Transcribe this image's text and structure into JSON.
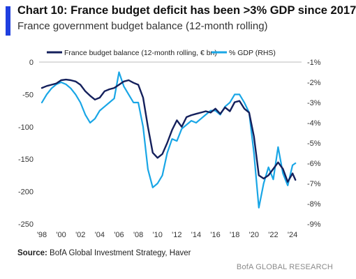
{
  "header": {
    "title": "Chart 10: France budget deficit has been >3% GDP since 2017",
    "subtitle": "France government budget balance (12-month rolling)"
  },
  "footer": {
    "source_label": "Source:",
    "source_text": "BofA Global Investment Strategy, Haver",
    "brand": "BofA GLOBAL RESEARCH"
  },
  "colors": {
    "accent": "#1f3fe0",
    "series_navy": "#14205c",
    "series_cyan": "#19a6e6"
  },
  "chart_data": {
    "type": "line",
    "title": "Chart 10: France budget deficit has been >3% GDP since 2017",
    "subtitle": "France government budget balance (12-month rolling)",
    "legend_position": "top",
    "grid": false,
    "x_ticks": [
      "'98",
      "'00",
      "'02",
      "'04",
      "'06",
      "'08",
      "'10",
      "'12",
      "'14",
      "'16",
      "'18",
      "'20",
      "'22",
      "'24"
    ],
    "xlim": [
      1998,
      2024.5
    ],
    "left_axis": {
      "ticks": [
        "0",
        "-50",
        "-100",
        "-150",
        "-200",
        "-250"
      ],
      "ylim": [
        -250,
        0
      ]
    },
    "right_axis": {
      "ticks": [
        "-1%",
        "-2%",
        "-3%",
        "-4%",
        "-5%",
        "-6%",
        "-7%",
        "-8%",
        "-9%"
      ],
      "ylim": [
        -9,
        -1
      ]
    },
    "series": [
      {
        "name": "France budget balance (12-month rolling, € bn)",
        "axis": "left",
        "x": [
          1998.0,
          1998.5,
          1999.0,
          1999.5,
          2000.0,
          2000.5,
          2001.0,
          2001.5,
          2002.0,
          2002.5,
          2003.0,
          2003.5,
          2004.0,
          2004.5,
          2005.0,
          2005.5,
          2006.0,
          2006.5,
          2007.0,
          2007.5,
          2008.0,
          2008.5,
          2009.0,
          2009.5,
          2010.0,
          2010.5,
          2011.0,
          2011.5,
          2012.0,
          2012.5,
          2013.0,
          2013.5,
          2014.0,
          2014.5,
          2015.0,
          2015.5,
          2016.0,
          2016.5,
          2017.0,
          2017.5,
          2018.0,
          2018.5,
          2019.0,
          2019.5,
          2020.0,
          2020.5,
          2021.0,
          2021.5,
          2022.0,
          2022.5,
          2023.0,
          2023.5,
          2024.0,
          2024.3
        ],
        "values": [
          -40,
          -37,
          -35,
          -33,
          -28,
          -27,
          -28,
          -30,
          -35,
          -45,
          -52,
          -58,
          -55,
          -45,
          -42,
          -40,
          -35,
          -30,
          -28,
          -32,
          -35,
          -55,
          -100,
          -140,
          -148,
          -142,
          -125,
          -105,
          -90,
          -100,
          -85,
          -82,
          -80,
          -78,
          -76,
          -78,
          -72,
          -80,
          -70,
          -76,
          -62,
          -60,
          -72,
          -78,
          -115,
          -175,
          -180,
          -175,
          -165,
          -155,
          -165,
          -185,
          -172,
          -182
        ]
      },
      {
        "name": "% GDP (RHS)",
        "axis": "right",
        "x": [
          1998.0,
          1998.5,
          1999.0,
          1999.5,
          2000.0,
          2000.5,
          2001.0,
          2001.5,
          2002.0,
          2002.5,
          2003.0,
          2003.5,
          2004.0,
          2004.5,
          2005.0,
          2005.5,
          2006.0,
          2006.5,
          2007.0,
          2007.5,
          2008.0,
          2008.5,
          2009.0,
          2009.5,
          2010.0,
          2010.5,
          2011.0,
          2011.5,
          2012.0,
          2012.5,
          2013.0,
          2013.5,
          2014.0,
          2014.5,
          2015.0,
          2015.5,
          2016.0,
          2016.5,
          2017.0,
          2017.5,
          2018.0,
          2018.5,
          2019.0,
          2019.5,
          2020.0,
          2020.5,
          2021.0,
          2021.5,
          2022.0,
          2022.5,
          2023.0,
          2023.5,
          2024.0,
          2024.3
        ],
        "values": [
          -3.0,
          -2.6,
          -2.3,
          -2.1,
          -2.0,
          -2.1,
          -2.3,
          -2.6,
          -3.0,
          -3.6,
          -4.0,
          -3.8,
          -3.4,
          -3.2,
          -3.0,
          -2.8,
          -1.5,
          -2.2,
          -2.6,
          -3.0,
          -3.0,
          -4.2,
          -6.3,
          -7.2,
          -7.0,
          -6.6,
          -5.5,
          -4.8,
          -4.9,
          -4.3,
          -4.1,
          -3.9,
          -4.0,
          -3.8,
          -3.6,
          -3.4,
          -3.4,
          -3.6,
          -3.2,
          -3.0,
          -2.6,
          -2.6,
          -3.0,
          -3.5,
          -5.5,
          -8.2,
          -7.0,
          -6.2,
          -6.8,
          -5.2,
          -6.5,
          -7.1,
          -6.1,
          -6.0
        ]
      }
    ]
  }
}
